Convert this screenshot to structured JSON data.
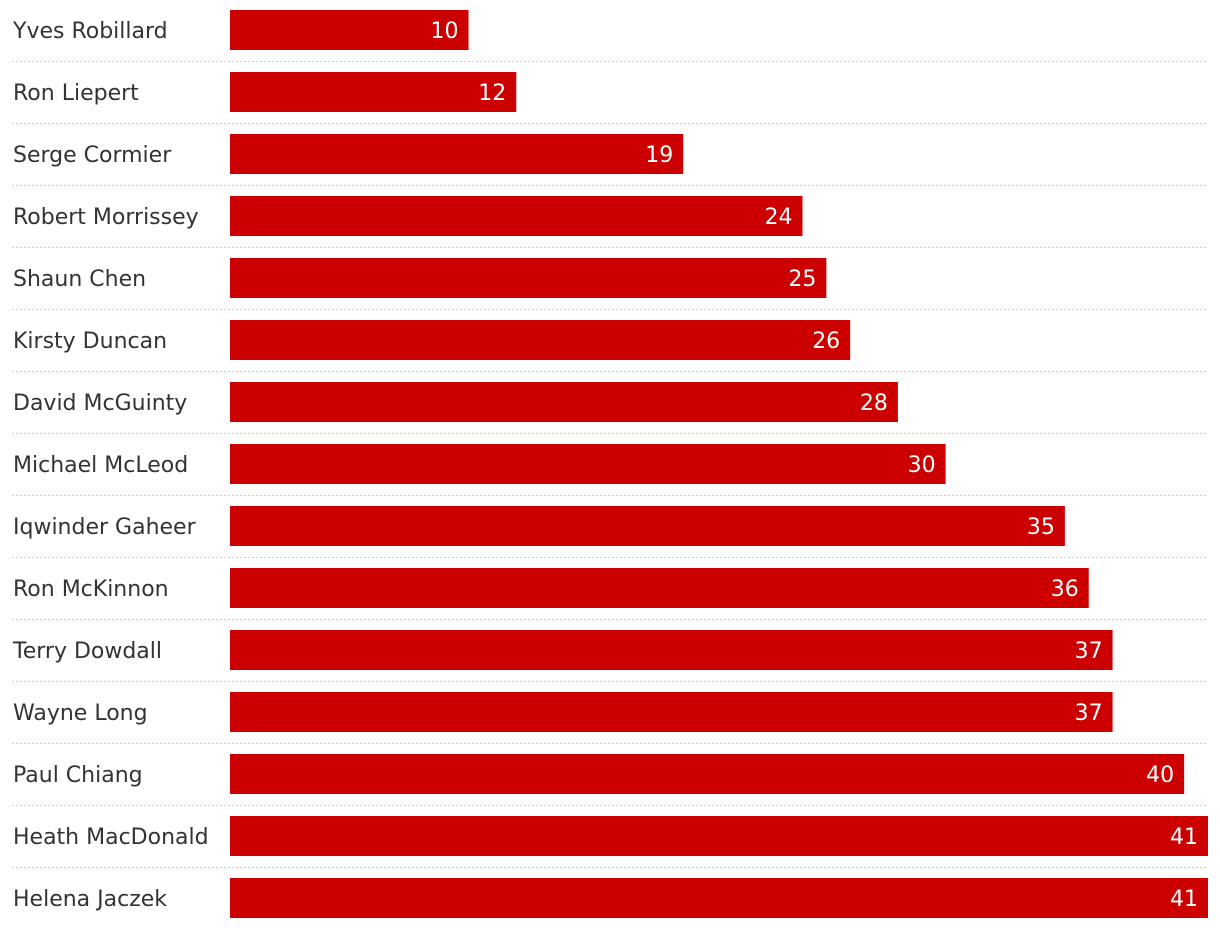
{
  "chart_data": {
    "type": "bar",
    "orientation": "horizontal",
    "title": "",
    "xlabel": "",
    "ylabel": "",
    "xlim": [
      0,
      41
    ],
    "grid": false,
    "legend": "none",
    "bar_color": "#cc0000",
    "label_color": "#ffffff",
    "text_color": "#333333",
    "separator_color": "#cfcfcf",
    "categories": [
      "Yves Robillard",
      "Ron Liepert",
      "Serge Cormier",
      "Robert Morrissey",
      "Shaun Chen",
      "Kirsty Duncan",
      "David McGuinty",
      "Michael McLeod",
      "Iqwinder Gaheer",
      "Ron McKinnon",
      "Terry Dowdall",
      "Wayne Long",
      "Paul Chiang",
      "Heath MacDonald",
      "Helena Jaczek"
    ],
    "values": [
      10,
      12,
      19,
      24,
      25,
      26,
      28,
      30,
      35,
      36,
      37,
      37,
      40,
      41,
      41
    ]
  }
}
